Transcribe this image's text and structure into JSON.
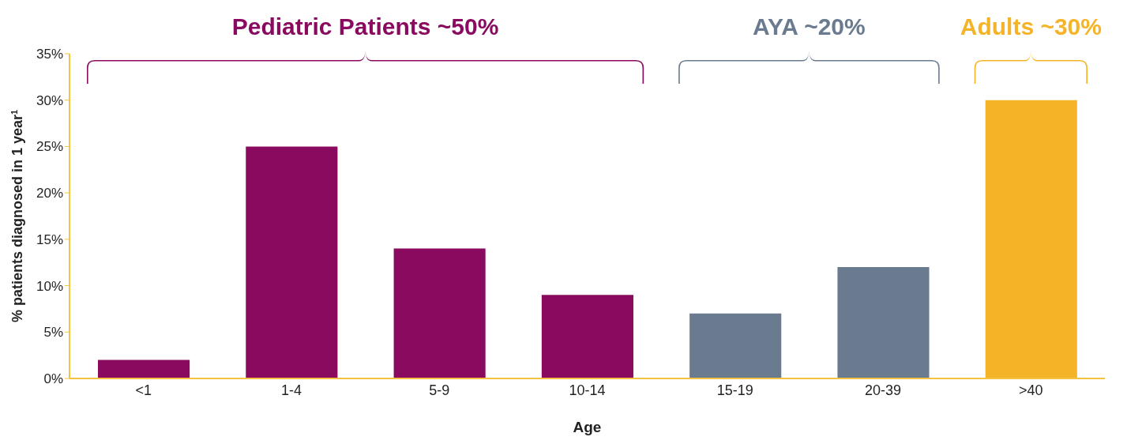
{
  "chart_data": {
    "type": "bar",
    "xlabel": "Age",
    "ylabel": "% patients diagnosed in 1 year$^{1}$",
    "categories": [
      "<1",
      "1-4",
      "5-9",
      "10-14",
      "15-19",
      "20-39",
      ">40"
    ],
    "values": [
      2,
      25,
      14,
      9,
      7,
      12,
      30
    ],
    "colors": [
      "#8a0a5f",
      "#8a0a5f",
      "#8a0a5f",
      "#8a0a5f",
      "#6b7b8f",
      "#6b7b8f",
      "#f5b428"
    ],
    "ylim": [
      0,
      35
    ],
    "yticks": [
      {
        "value": 0,
        "label": "0%"
      },
      {
        "value": 5,
        "label": "5%"
      },
      {
        "value": 10,
        "label": "10%"
      },
      {
        "value": 15,
        "label": "15%"
      },
      {
        "value": 20,
        "label": "20%"
      },
      {
        "value": 25,
        "label": "25%"
      },
      {
        "value": 30,
        "label": "30%"
      },
      {
        "value": 35,
        "label": "35%"
      }
    ],
    "grid": false,
    "legend": false,
    "annotations": [
      "Pediatric Patients ~50%",
      "AYA ~20%",
      "Adults ~30%"
    ]
  }
}
